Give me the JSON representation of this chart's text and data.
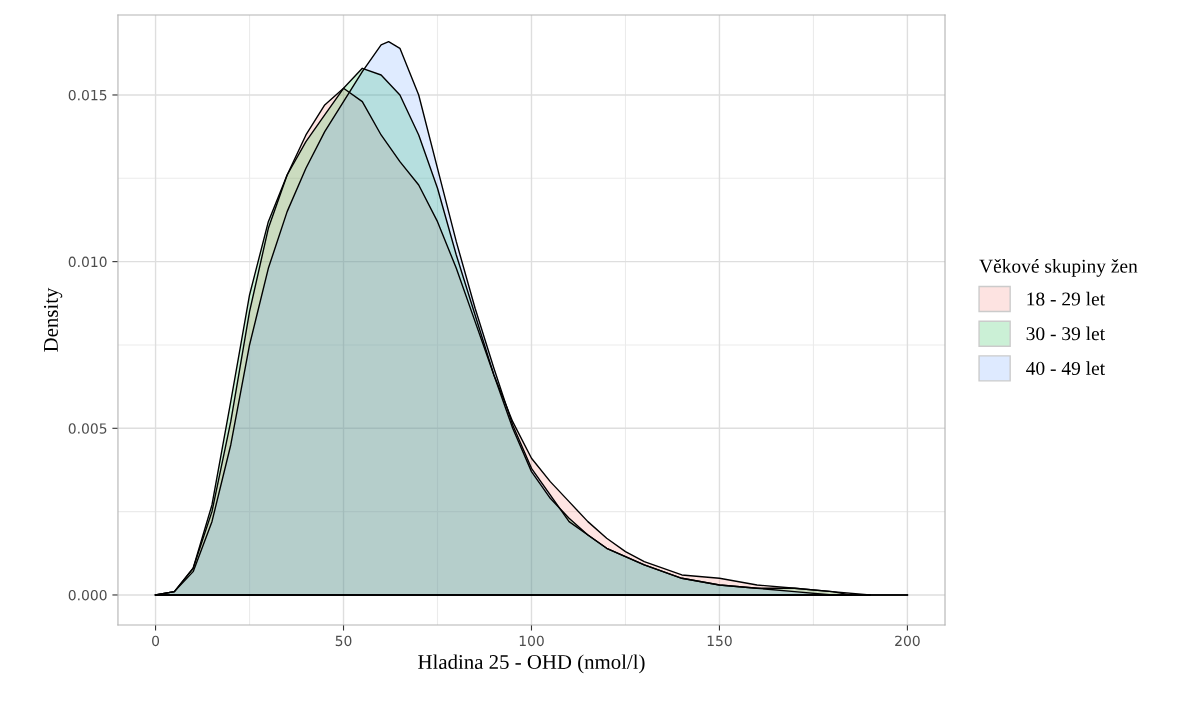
{
  "chart_data": {
    "type": "area",
    "xlabel": "Hladina 25 - OHD (nmol/l)",
    "ylabel": "Density",
    "legend_title": "Věkové skupiny žen",
    "legend": "right",
    "grid": true,
    "xlim": [
      -10,
      210
    ],
    "ylim": [
      -0.0009,
      0.0174
    ],
    "xticks": [
      0,
      50,
      100,
      150,
      200
    ],
    "yticks": [
      {
        "value": 0,
        "label": "0.000"
      },
      {
        "value": 0.005,
        "label": "0.005"
      },
      {
        "value": 0.01,
        "label": "0.010"
      },
      {
        "value": 0.015,
        "label": "0.015"
      }
    ],
    "series": [
      {
        "name": "18 - 29 let",
        "color": "#f8766d",
        "x": [
          0,
          5,
          10,
          15,
          20,
          25,
          30,
          35,
          40,
          45,
          50,
          55,
          60,
          65,
          70,
          75,
          80,
          85,
          90,
          95,
          100,
          105,
          110,
          115,
          120,
          125,
          130,
          140,
          150,
          160,
          170,
          180,
          190,
          200
        ],
        "values": [
          0,
          0.0001,
          0.0008,
          0.0025,
          0.0052,
          0.0085,
          0.011,
          0.0126,
          0.0138,
          0.0147,
          0.0152,
          0.0148,
          0.0138,
          0.013,
          0.0123,
          0.0112,
          0.0098,
          0.0082,
          0.0066,
          0.0052,
          0.0041,
          0.0034,
          0.0028,
          0.0022,
          0.0017,
          0.0013,
          0.001,
          0.0006,
          0.0005,
          0.0003,
          0.0002,
          0.0001,
          0,
          0
        ]
      },
      {
        "name": "30 - 39 let",
        "color": "#00ba38",
        "x": [
          0,
          5,
          10,
          15,
          20,
          25,
          30,
          35,
          40,
          45,
          50,
          55,
          60,
          65,
          70,
          75,
          80,
          85,
          90,
          95,
          100,
          105,
          110,
          115,
          120,
          130,
          140,
          150,
          160,
          170,
          180,
          185
        ],
        "values": [
          0,
          0.0001,
          0.0008,
          0.0027,
          0.0058,
          0.009,
          0.0112,
          0.0126,
          0.0136,
          0.0144,
          0.0152,
          0.0158,
          0.0156,
          0.015,
          0.0138,
          0.0122,
          0.0102,
          0.0084,
          0.0066,
          0.005,
          0.0037,
          0.0029,
          0.0023,
          0.0018,
          0.0014,
          0.0009,
          0.0005,
          0.0003,
          0.0002,
          0.0002,
          0.0001,
          0
        ]
      },
      {
        "name": "40 - 49 let",
        "color": "#619cff",
        "x": [
          0,
          5,
          10,
          15,
          20,
          25,
          30,
          35,
          40,
          45,
          50,
          55,
          60,
          62,
          65,
          70,
          75,
          80,
          85,
          90,
          95,
          100,
          110,
          120,
          130,
          140,
          150,
          160,
          170,
          180,
          190
        ],
        "values": [
          0,
          0.0001,
          0.0007,
          0.0022,
          0.0045,
          0.0075,
          0.0098,
          0.0115,
          0.0128,
          0.0139,
          0.0148,
          0.0157,
          0.0165,
          0.0166,
          0.0164,
          0.015,
          0.0128,
          0.0106,
          0.0086,
          0.0068,
          0.0051,
          0.0038,
          0.0022,
          0.0014,
          0.0009,
          0.0005,
          0.0003,
          0.0002,
          0.0001,
          0,
          0
        ]
      }
    ]
  }
}
